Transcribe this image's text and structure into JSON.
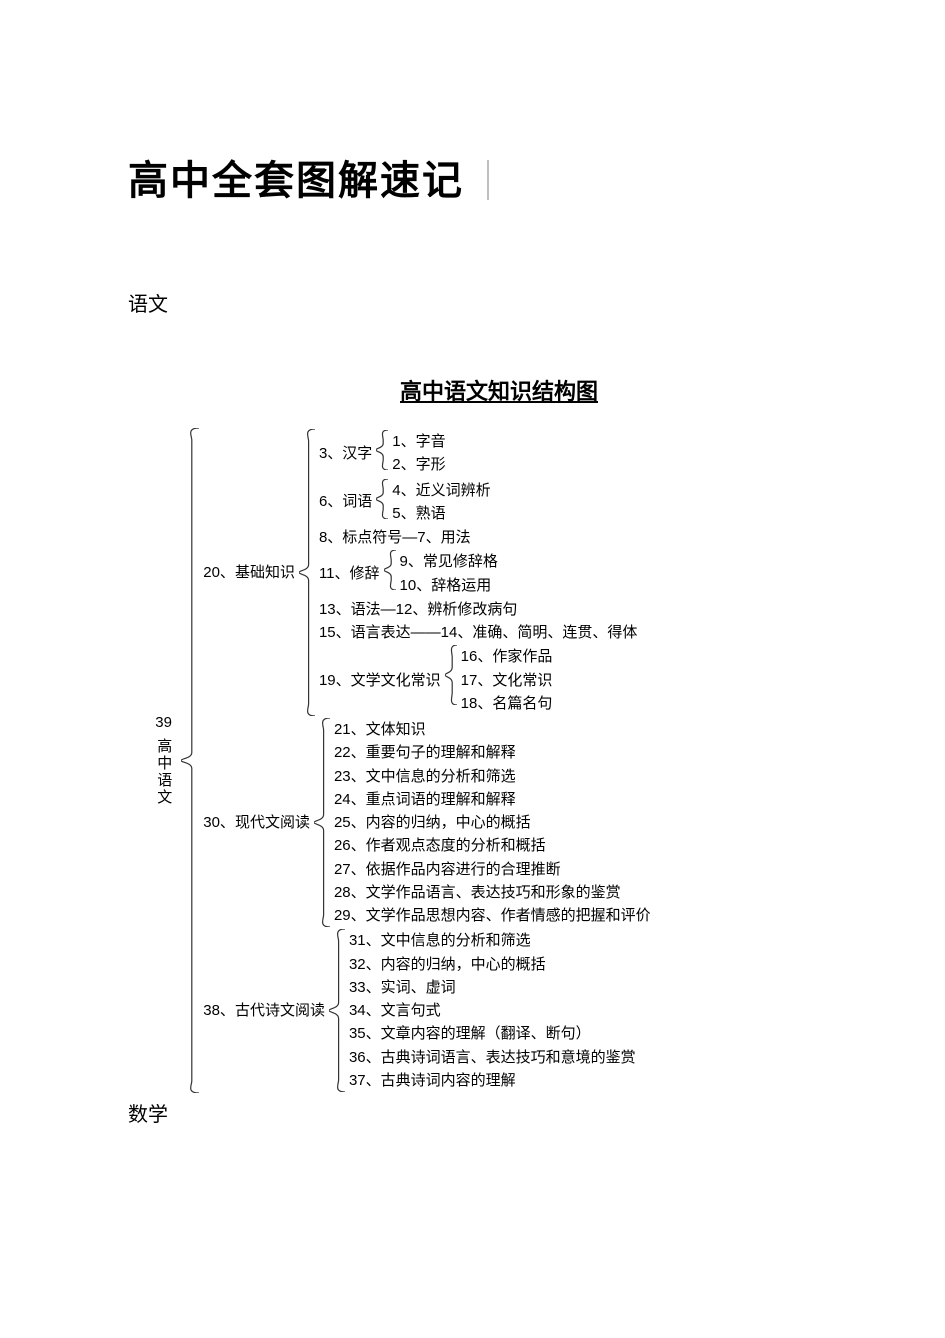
{
  "page_title": "高中全套图解速记",
  "section_labels": {
    "yuwen": "语文",
    "shuxue": "数学"
  },
  "diagram_title": "高中语文知识结构图",
  "colors": {
    "text": "#000000",
    "bg": "#ffffff",
    "brace": "#333333"
  },
  "font": {
    "title_size": 40,
    "diagram_title_size": 22,
    "body_size": 15
  },
  "root": {
    "num": "39",
    "label": "高中语文"
  },
  "level1": [
    {
      "id": "jichu",
      "num": "20、",
      "label": "基础知识"
    },
    {
      "id": "xiandai",
      "num": "30、",
      "label": "现代文阅读"
    },
    {
      "id": "gudai",
      "num": "38、",
      "label": "古代诗文阅读"
    }
  ],
  "jichu_children": [
    {
      "prefix": "3、汉字",
      "sub": [
        "1、字音",
        "2、字形"
      ]
    },
    {
      "prefix": "6、词语",
      "sub": [
        "4、近义词辨析",
        "5、熟语"
      ]
    },
    {
      "inline": "8、标点符号—7、用法"
    },
    {
      "prefix": "11、修辞",
      "sub": [
        "9、常见修辞格",
        "10、辞格运用"
      ]
    },
    {
      "inline": "13、语法—12、辨析修改病句"
    },
    {
      "inline": "15、语言表达——14、准确、简明、连贯、得体"
    },
    {
      "prefix": "19、文学文化常识",
      "sub": [
        "16、作家作品",
        "17、文化常识",
        "18、名篇名句"
      ]
    }
  ],
  "xiandai_children": [
    "21、文体知识",
    "22、重要句子的理解和解释",
    "23、文中信息的分析和筛选",
    "24、重点词语的理解和解释",
    "25、内容的归纳，中心的概括",
    "26、作者观点态度的分析和概括",
    "27、依据作品内容进行的合理推断",
    "28、文学作品语言、表达技巧和形象的鉴赏",
    "29、文学作品思想内容、作者情感的把握和评价"
  ],
  "gudai_children": [
    "31、文中信息的分析和筛选",
    "32、内容的归纳，中心的概括",
    "33、实词、虚词",
    "34、文言句式",
    "35、文章内容的理解（翻译、断句）",
    "36、古典诗词语言、表达技巧和意境的鉴赏",
    "37、古典诗词内容的理解"
  ]
}
